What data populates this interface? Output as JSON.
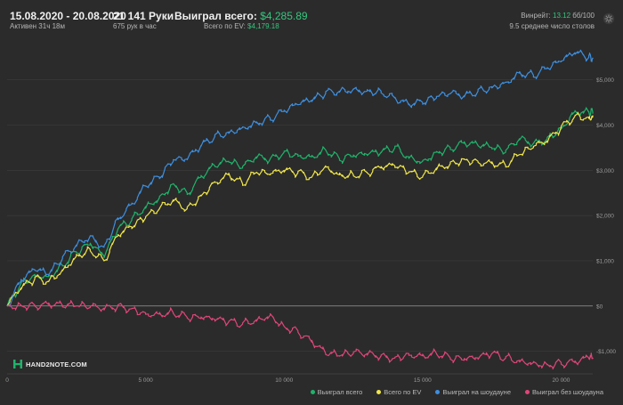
{
  "header": {
    "date_range": "15.08.2020 - 20.08.2020",
    "active_time": "Активен 31ч 18м",
    "hands": "21 141 Руки",
    "hands_per_hour": "675 рук в час",
    "won_total_label": "Выиграл всего:",
    "won_total_value": "$4,285.89",
    "ev_total_label": "Всего по EV:",
    "ev_total_value": "$4,179.18",
    "winrate_label": "Винрейт:",
    "winrate_value": "13.12",
    "winrate_suffix": "бб/100",
    "avg_tables": "9.5 среднее число столов"
  },
  "logo": {
    "text": "HAND2NOTE.COM",
    "icon": "h2n-logo-icon"
  },
  "icons": {
    "settings": "gear-icon"
  },
  "colors": {
    "background": "#2b2b2b",
    "grid": "#3d3d3d",
    "zero_line": "#9a9a9a",
    "total": "#1fb36b",
    "ev": "#f0e64a",
    "showdown": "#3d8fe0",
    "non_showdown": "#e0457a",
    "accent_value": "#35c77f"
  },
  "chart_data": {
    "type": "line",
    "x_axis": {
      "range": [
        0,
        21141
      ],
      "ticks": [
        0,
        5000,
        10000,
        15000,
        20000
      ],
      "tick_labels": [
        "0",
        "5 000",
        "10 000",
        "15 000",
        "20 000"
      ]
    },
    "y_axis": {
      "range": [
        -1500,
        5900
      ],
      "ticks": [
        -1000,
        0,
        1000,
        2000,
        3000,
        4000,
        5000
      ],
      "tick_labels": [
        "-$1,000",
        "$0",
        "$1,000",
        "$2,000",
        "$3,000",
        "$4,000",
        "$5,000"
      ],
      "position": "right"
    },
    "grid": true,
    "legend_position": "bottom-right",
    "x": [
      0,
      500,
      1000,
      1500,
      2000,
      2500,
      3000,
      3500,
      4000,
      4500,
      5000,
      5500,
      6000,
      6500,
      7000,
      7500,
      8000,
      8500,
      9000,
      9500,
      10000,
      10500,
      11000,
      11500,
      12000,
      12500,
      13000,
      13500,
      14000,
      14500,
      15000,
      15500,
      16000,
      16500,
      17000,
      17500,
      18000,
      18500,
      19000,
      19500,
      20000,
      20500,
      21000,
      21141
    ],
    "series": [
      {
        "name": "Выиграл всего",
        "color_key": "total",
        "values": [
          0,
          500,
          700,
          650,
          900,
          1200,
          1350,
          1100,
          1700,
          1900,
          2200,
          2400,
          2700,
          2500,
          2850,
          3100,
          3200,
          3050,
          3300,
          3250,
          3400,
          3350,
          3300,
          3450,
          3250,
          3300,
          3350,
          3400,
          3500,
          3300,
          3200,
          3400,
          3500,
          3600,
          3550,
          3500,
          3400,
          3700,
          3600,
          3700,
          3950,
          4300,
          4285.89,
          4285.89
        ]
      },
      {
        "name": "Всего по EV",
        "color_key": "ev",
        "values": [
          0,
          400,
          600,
          550,
          800,
          1100,
          1250,
          1000,
          1550,
          1750,
          1950,
          2150,
          2350,
          2150,
          2450,
          2750,
          2900,
          2700,
          2950,
          2900,
          3000,
          2950,
          2850,
          3100,
          2900,
          2900,
          2950,
          3050,
          3100,
          2950,
          2850,
          3050,
          3150,
          3250,
          3200,
          3150,
          3100,
          3350,
          3500,
          3650,
          3950,
          4200,
          4179.18,
          4179.18
        ]
      },
      {
        "name": "Выиграл на шоудауне",
        "color_key": "showdown",
        "values": [
          0,
          550,
          800,
          700,
          1050,
          1350,
          1550,
          1300,
          1950,
          2250,
          2650,
          2850,
          3200,
          3250,
          3550,
          3750,
          3850,
          3950,
          4050,
          4150,
          4300,
          4450,
          4550,
          4700,
          4750,
          4800,
          4750,
          4750,
          4600,
          4450,
          4500,
          4600,
          4700,
          4650,
          4750,
          4850,
          4950,
          5150,
          5100,
          5250,
          5400,
          5600,
          5500,
          5480
        ]
      },
      {
        "name": "Выиграл без шоудауна",
        "color_key": "non_showdown",
        "values": [
          0,
          20,
          20,
          30,
          10,
          0,
          -30,
          -50,
          0,
          -60,
          -150,
          -180,
          -150,
          -250,
          -280,
          -300,
          -350,
          -400,
          -300,
          -200,
          -450,
          -550,
          -800,
          -1050,
          -1100,
          -1050,
          -1050,
          -1100,
          -1150,
          -1050,
          -1100,
          -1050,
          -1150,
          -1200,
          -1150,
          -1050,
          -1150,
          -1200,
          -1250,
          -1300,
          -1250,
          -1250,
          -1150,
          -1150
        ]
      }
    ]
  },
  "legend": {
    "items": [
      {
        "label": "Выиграл всего",
        "color_key": "total"
      },
      {
        "label": "Всего по EV",
        "color_key": "ev"
      },
      {
        "label": "Выиграл на шоудауне",
        "color_key": "showdown"
      },
      {
        "label": "Выиграл без шоудауна",
        "color_key": "non_showdown"
      }
    ]
  }
}
